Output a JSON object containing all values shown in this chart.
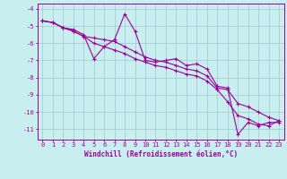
{
  "line1_x": [
    0,
    1,
    2,
    3,
    4,
    5,
    6,
    7,
    8,
    9,
    10,
    11,
    12,
    13,
    14,
    15,
    16,
    17,
    18,
    19,
    20,
    21,
    22,
    23
  ],
  "line1_y": [
    -4.7,
    -4.8,
    -5.1,
    -5.2,
    -5.5,
    -6.9,
    -6.2,
    -5.8,
    -4.3,
    -5.3,
    -7.0,
    -7.1,
    -7.0,
    -6.9,
    -7.3,
    -7.2,
    -7.5,
    -8.5,
    -8.6,
    -11.3,
    -10.6,
    -10.8,
    -10.6,
    -10.6
  ],
  "line2_x": [
    0,
    1,
    2,
    3,
    4,
    5,
    6,
    7,
    8,
    9,
    10,
    11,
    12,
    13,
    14,
    15,
    16,
    17,
    18,
    19,
    20,
    21,
    22,
    23
  ],
  "line2_y": [
    -4.7,
    -4.8,
    -5.1,
    -5.3,
    -5.6,
    -5.7,
    -5.8,
    -5.9,
    -6.2,
    -6.5,
    -6.8,
    -7.0,
    -7.1,
    -7.3,
    -7.5,
    -7.6,
    -7.9,
    -8.6,
    -8.7,
    -9.5,
    -9.7,
    -10.0,
    -10.3,
    -10.5
  ],
  "line3_x": [
    0,
    1,
    2,
    3,
    4,
    5,
    6,
    7,
    8,
    9,
    10,
    11,
    12,
    13,
    14,
    15,
    16,
    17,
    18,
    19,
    20,
    21,
    22,
    23
  ],
  "line3_y": [
    -4.7,
    -4.8,
    -5.1,
    -5.3,
    -5.6,
    -6.0,
    -6.2,
    -6.4,
    -6.6,
    -6.9,
    -7.1,
    -7.3,
    -7.4,
    -7.6,
    -7.8,
    -7.9,
    -8.2,
    -8.7,
    -9.4,
    -10.2,
    -10.4,
    -10.7,
    -10.8,
    -10.5
  ],
  "line_color": "#990099",
  "marker": "+",
  "markersize": 3,
  "linewidth": 0.8,
  "markeredgewidth": 0.8,
  "xlabel": "Windchill (Refroidissement éolien,°C)",
  "xlabel_fontsize": 5.5,
  "ylabel_ticks": [
    -4,
    -5,
    -6,
    -7,
    -8,
    -9,
    -10,
    -11
  ],
  "xticks": [
    0,
    1,
    2,
    3,
    4,
    5,
    6,
    7,
    8,
    9,
    10,
    11,
    12,
    13,
    14,
    15,
    16,
    17,
    18,
    19,
    20,
    21,
    22,
    23
  ],
  "xlim": [
    -0.5,
    23.5
  ],
  "ylim": [
    -11.6,
    -3.7
  ],
  "background_color": "#c8eef0",
  "grid_color": "#a0c8d0",
  "tick_fontsize": 5.0,
  "fig_width": 3.2,
  "fig_height": 2.0,
  "dpi": 100
}
